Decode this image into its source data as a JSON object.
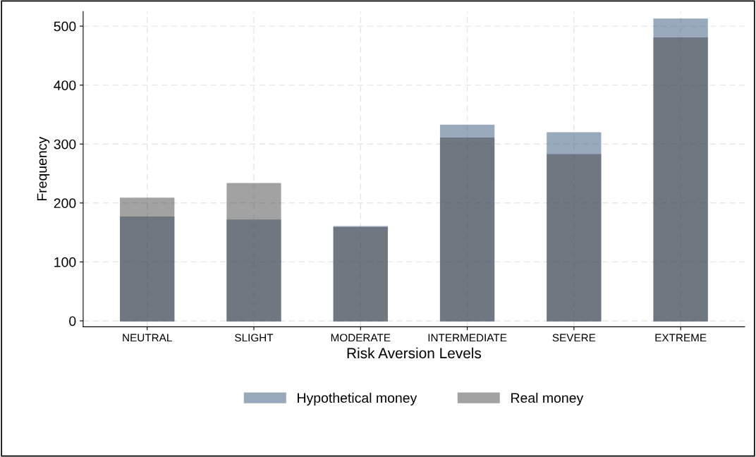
{
  "chart_data": {
    "type": "bar",
    "xlabel": "Risk Aversion Levels",
    "ylabel": "Frequency",
    "categories": [
      "NEUTRAL",
      "SLIGHT",
      "MODERATE",
      "INTERMEDIATE",
      "SEVERE",
      "EXTREME"
    ],
    "series": [
      {
        "name": "Hypothetical money",
        "color": "#33557a",
        "values": [
          176,
          171,
          160,
          332,
          319,
          512
        ]
      },
      {
        "name": "Real money",
        "color": "#474747",
        "values": [
          208,
          233,
          158,
          310,
          282,
          480
        ]
      }
    ],
    "ylim": [
      -10,
      525
    ],
    "yticks": [
      0,
      100,
      200,
      300,
      400,
      500
    ],
    "grid": true,
    "legend": "bottom"
  }
}
